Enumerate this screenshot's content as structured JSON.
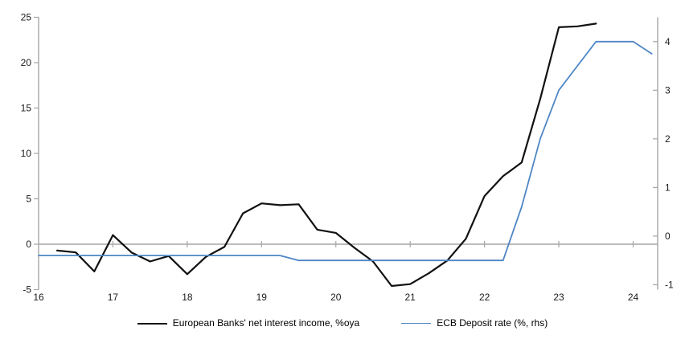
{
  "chart_data": {
    "type": "line",
    "title": "",
    "x_axis": {
      "label": "",
      "tick_values": [
        16,
        17,
        18,
        19,
        20,
        21,
        22,
        23,
        24
      ],
      "tick_labels": [
        "16",
        "17",
        "18",
        "19",
        "20",
        "21",
        "22",
        "23",
        "24"
      ],
      "range": [
        16,
        24.33
      ]
    },
    "left_axis": {
      "label": "",
      "tick_values": [
        -5,
        0,
        5,
        10,
        15,
        20,
        25
      ],
      "range": [
        -5,
        25
      ],
      "zero_gridline": true
    },
    "right_axis": {
      "label": "",
      "tick_values": [
        -1,
        0,
        1,
        2,
        3,
        4
      ],
      "range": [
        -1.1,
        4.5
      ]
    },
    "series": [
      {
        "name": "European Banks' net interest income, %oya",
        "axis": "left",
        "color": "#111111",
        "width": 2.2,
        "points": [
          [
            16.25,
            -0.7
          ],
          [
            16.5,
            -0.9
          ],
          [
            16.75,
            -3.0
          ],
          [
            17.0,
            1.0
          ],
          [
            17.25,
            -0.9
          ],
          [
            17.5,
            -1.9
          ],
          [
            17.75,
            -1.3
          ],
          [
            18.0,
            -3.3
          ],
          [
            18.25,
            -1.4
          ],
          [
            18.5,
            -0.3
          ],
          [
            18.75,
            3.4
          ],
          [
            19.0,
            4.5
          ],
          [
            19.25,
            4.3
          ],
          [
            19.5,
            4.4
          ],
          [
            19.75,
            1.6
          ],
          [
            20.0,
            1.25
          ],
          [
            20.25,
            -0.4
          ],
          [
            20.5,
            -1.9
          ],
          [
            20.75,
            -4.6
          ],
          [
            21.0,
            -4.4
          ],
          [
            21.25,
            -3.2
          ],
          [
            21.5,
            -1.8
          ],
          [
            21.75,
            0.6
          ],
          [
            22.0,
            5.3
          ],
          [
            22.25,
            7.5
          ],
          [
            22.5,
            9.0
          ],
          [
            22.75,
            16.0
          ],
          [
            23.0,
            23.9
          ],
          [
            23.25,
            24.0
          ],
          [
            23.5,
            24.3
          ]
        ]
      },
      {
        "name": "ECB Deposit rate (%, rhs)",
        "axis": "right",
        "color": "#4e86c5",
        "width": 1.8,
        "points": [
          [
            16.0,
            -0.4
          ],
          [
            19.25,
            -0.4
          ],
          [
            19.5,
            -0.5
          ],
          [
            22.25,
            -0.5
          ],
          [
            22.5,
            0.6
          ],
          [
            22.75,
            2.0
          ],
          [
            23.0,
            3.0
          ],
          [
            23.25,
            3.5
          ],
          [
            23.5,
            4.0
          ],
          [
            24.0,
            4.0
          ],
          [
            24.25,
            3.75
          ]
        ]
      }
    ],
    "legend": {
      "position": "bottom"
    },
    "colors": {
      "axis": "#a6a6a6",
      "text": "#1a1a1a",
      "background": "#ffffff"
    },
    "grid": "zero-line-only"
  }
}
